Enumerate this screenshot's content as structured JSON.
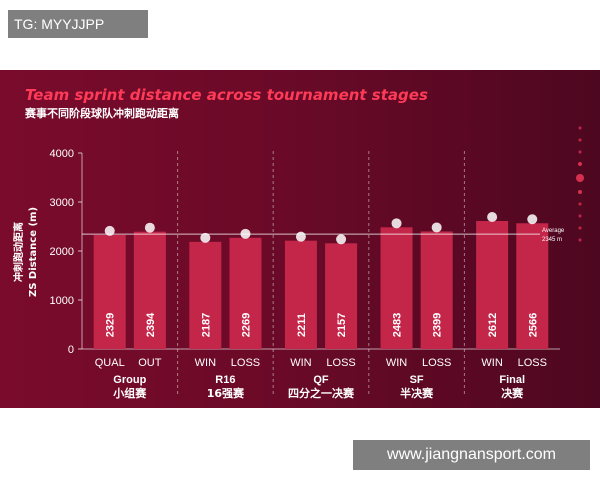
{
  "tag": "TG: MYYJJPP",
  "watermark": "www.jiangnansport.com",
  "title_en": "Team sprint distance across tournament stages",
  "title_cn": "赛事不同阶段球队冲刺跑动距离",
  "colors": {
    "bar": "#c4264a",
    "accent": "#ff3b57",
    "bg_start": "#7a0b2c",
    "bg_end": "#4e0720"
  },
  "chart_data": {
    "type": "bar",
    "ylabel_cn": "冲刺跑动距离",
    "ylabel_en": "ZS Distance (m)",
    "ylim": [
      0,
      4000
    ],
    "yticks": [
      0,
      1000,
      2000,
      3000,
      4000
    ],
    "average": {
      "value": 2345,
      "label": "Average",
      "sublabel": "2345 m"
    },
    "groups": [
      {
        "name": "Group",
        "name_cn": "小组赛",
        "bars": [
          {
            "label": "QUAL",
            "value": 2329
          },
          {
            "label": "OUT",
            "value": 2394
          }
        ]
      },
      {
        "name": "R16",
        "name_cn": "16强赛",
        "bars": [
          {
            "label": "WIN",
            "value": 2187
          },
          {
            "label": "LOSS",
            "value": 2269
          }
        ]
      },
      {
        "name": "QF",
        "name_cn": "四分之一决赛",
        "bars": [
          {
            "label": "WIN",
            "value": 2211
          },
          {
            "label": "LOSS",
            "value": 2157
          }
        ]
      },
      {
        "name": "SF",
        "name_cn": "半决赛",
        "bars": [
          {
            "label": "WIN",
            "value": 2483
          },
          {
            "label": "LOSS",
            "value": 2399
          }
        ]
      },
      {
        "name": "Final",
        "name_cn": "决赛",
        "bars": [
          {
            "label": "WIN",
            "value": 2612
          },
          {
            "label": "LOSS",
            "value": 2566
          }
        ]
      }
    ]
  }
}
